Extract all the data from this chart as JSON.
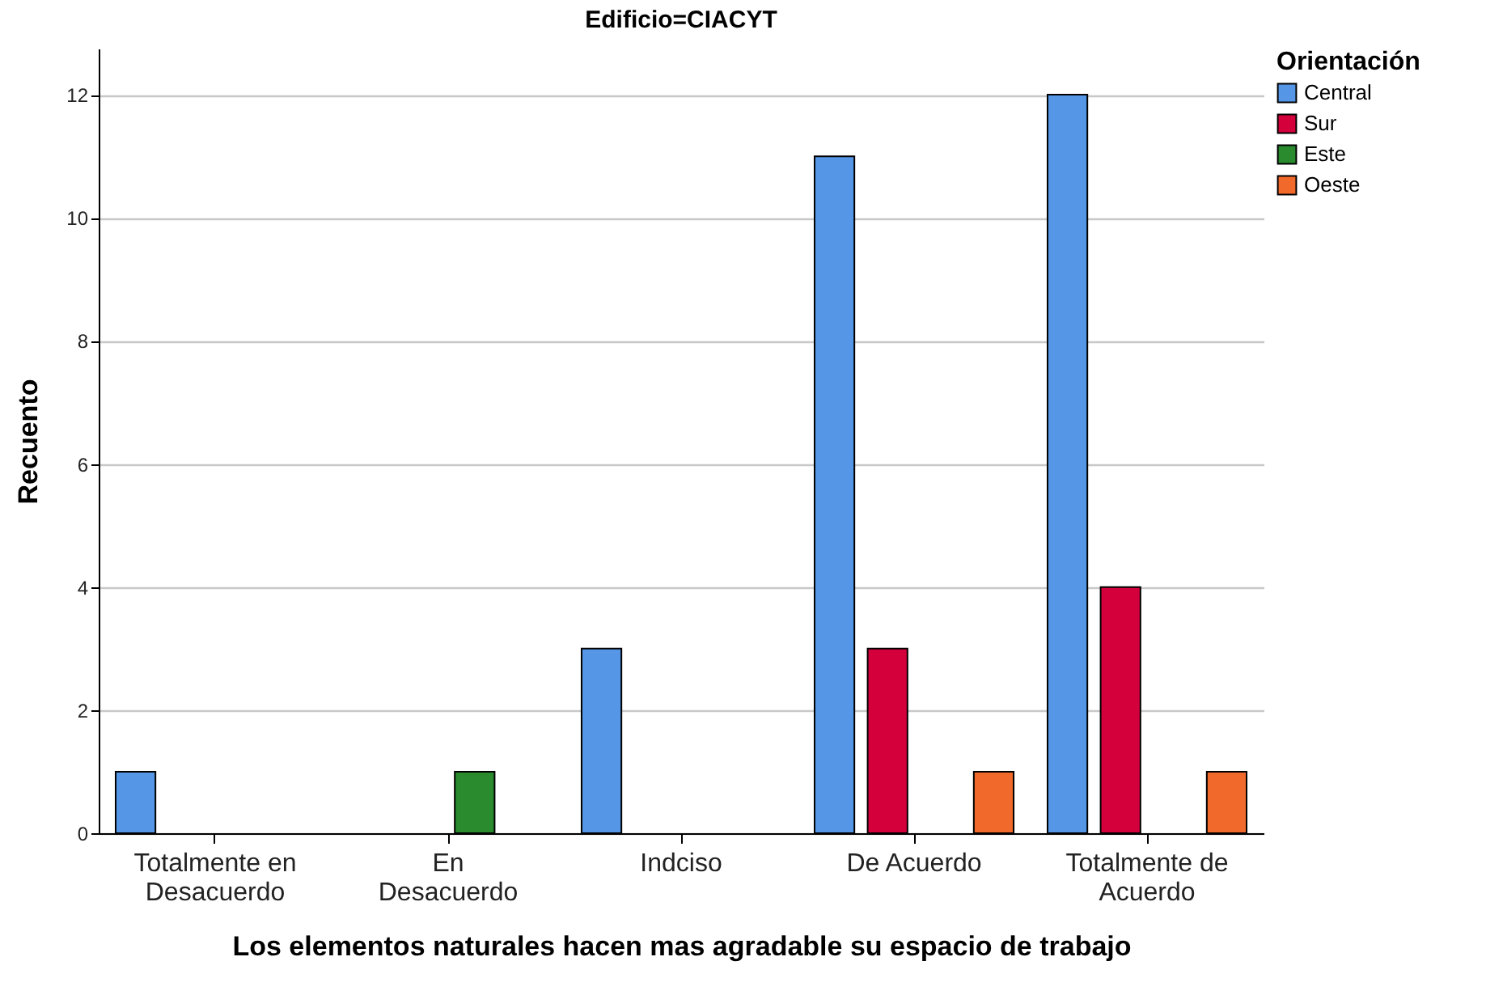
{
  "chart_data": {
    "type": "bar",
    "title": "Edificio=CIACYT",
    "xlabel": "Los elementos naturales hacen mas agradable su espacio de trabajo",
    "ylabel": "Recuento",
    "legend_title": "Orientación",
    "categories": [
      "Totalmente en Desacuerdo",
      "En Desacuerdo",
      "Indciso",
      "De Acuerdo",
      "Totalmente de Acuerdo"
    ],
    "series": [
      {
        "name": "Central",
        "color": "#5596e6",
        "values": [
          1,
          null,
          3,
          11,
          12
        ]
      },
      {
        "name": "Sur",
        "color": "#d3003c",
        "values": [
          null,
          null,
          null,
          3,
          4
        ]
      },
      {
        "name": "Este",
        "color": "#2a8a2e",
        "values": [
          null,
          1,
          null,
          null,
          null
        ]
      },
      {
        "name": "Oeste",
        "color": "#f2692c",
        "values": [
          null,
          null,
          null,
          1,
          1
        ]
      }
    ],
    "ylim": [
      0,
      12.75
    ],
    "yticks": [
      0,
      2,
      4,
      6,
      8,
      10,
      12
    ],
    "grid": "y",
    "legend": "top right"
  }
}
